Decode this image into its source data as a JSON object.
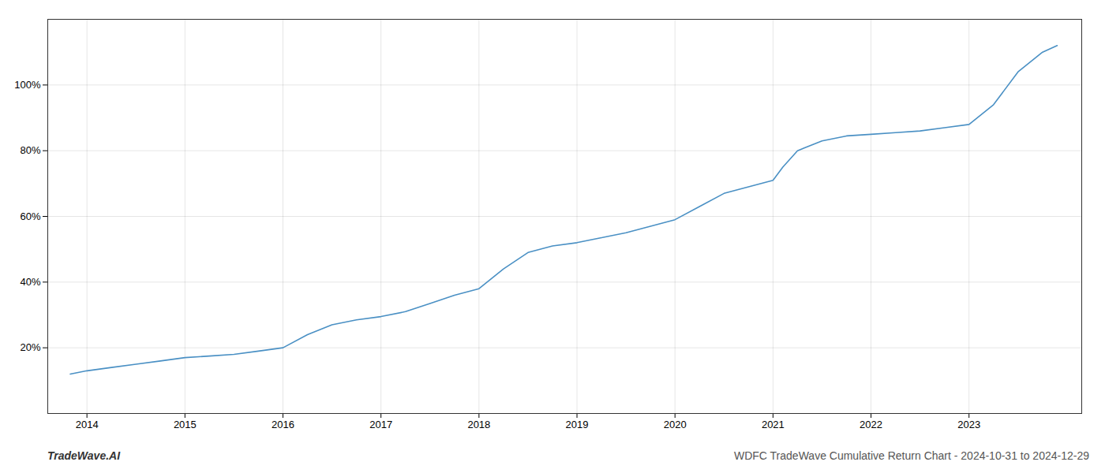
{
  "chart_data": {
    "type": "line",
    "title": "WDFC TradeWave Cumulative Return Chart - 2024-10-31 to 2024-12-29",
    "annotations": [
      "TradeWave.AI"
    ],
    "color": "#4a90c4",
    "grid": true,
    "x": [
      2013.83,
      2014.0,
      2014.25,
      2014.5,
      2014.75,
      2015.0,
      2015.25,
      2015.5,
      2015.75,
      2016.0,
      2016.25,
      2016.5,
      2016.75,
      2017.0,
      2017.25,
      2017.5,
      2017.75,
      2018.0,
      2018.25,
      2018.5,
      2018.75,
      2019.0,
      2019.25,
      2019.5,
      2019.75,
      2020.0,
      2020.25,
      2020.5,
      2020.75,
      2021.0,
      2021.1,
      2021.25,
      2021.5,
      2021.75,
      2022.0,
      2022.25,
      2022.5,
      2022.75,
      2023.0,
      2023.25,
      2023.5,
      2023.75,
      2023.9
    ],
    "values": [
      12,
      13,
      14,
      15,
      16,
      17,
      17.5,
      18,
      19,
      20,
      24,
      27,
      28.5,
      29.5,
      31,
      33.5,
      36,
      38,
      44,
      49,
      51,
      52,
      53.5,
      55,
      57,
      59,
      63,
      67,
      69,
      71,
      75,
      80,
      83,
      84.5,
      85,
      85.5,
      86,
      87,
      88,
      94,
      104,
      110,
      112
    ],
    "xlim": [
      2013.6,
      2024.15
    ],
    "xticks": [
      2014,
      2015,
      2016,
      2017,
      2018,
      2019,
      2020,
      2021,
      2022,
      2023
    ],
    "ylim": [
      0,
      120
    ],
    "yticks": [
      {
        "value": 20,
        "label": "20%"
      },
      {
        "value": 40,
        "label": "40%"
      },
      {
        "value": 60,
        "label": "60%"
      },
      {
        "value": 80,
        "label": "80%"
      },
      {
        "value": 100,
        "label": "100%"
      }
    ]
  }
}
